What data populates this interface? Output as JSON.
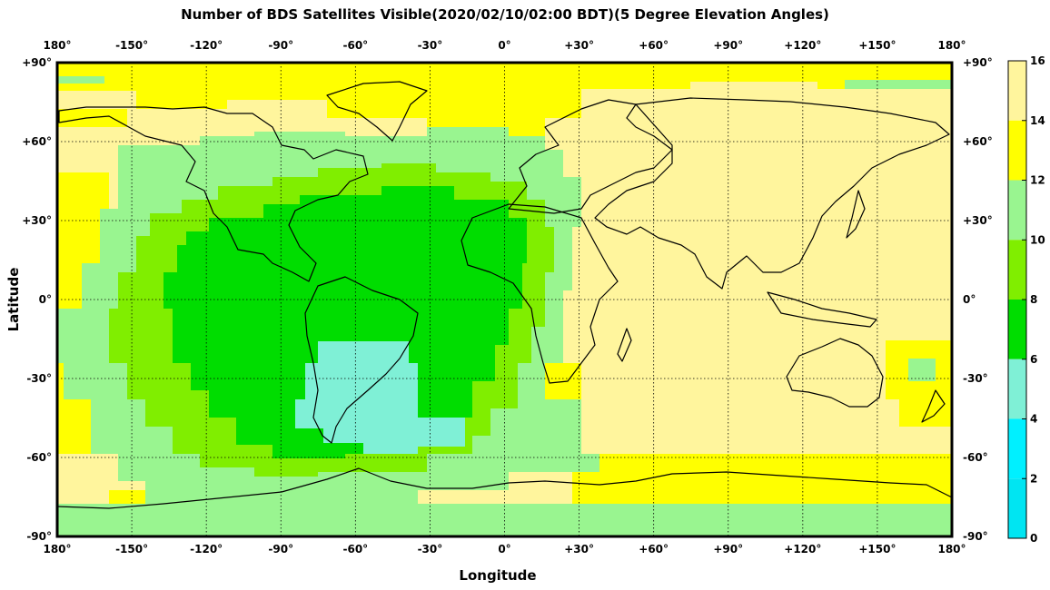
{
  "chart_data": {
    "type": "heatmap",
    "title": "Number of BDS Satellites Visible(2020/02/10/02:00 BDT)(5 Degree Elevation Angles)",
    "xlabel": "Longitude",
    "ylabel": "Latitude",
    "x_ticks_top": [
      "180°",
      "-150°",
      "-120°",
      "-90°",
      "-60°",
      "-30°",
      "0°",
      "+30°",
      "+60°",
      "+90°",
      "+120°",
      "+150°",
      "180°"
    ],
    "x_ticks_bottom": [
      "180°",
      "-150°",
      "-120°",
      "-90°",
      "-60°",
      "-30°",
      "0°",
      "+30°",
      "+60°",
      "+90°",
      "+120°",
      "+150°",
      "180°"
    ],
    "y_ticks": [
      "+90°",
      "+60°",
      "+30°",
      "0°",
      "-30°",
      "-60°",
      "-90°"
    ],
    "xlim": [
      -180,
      180
    ],
    "ylim": [
      -90,
      90
    ],
    "grid": true,
    "colorbar": {
      "ticks": [
        "16",
        "14",
        "12",
        "10",
        "8",
        "6",
        "4",
        "2",
        "0"
      ],
      "levels": [
        {
          "min": 14,
          "max": 16,
          "color": "#fff59d"
        },
        {
          "min": 12,
          "max": 14,
          "color": "#ffff00"
        },
        {
          "min": 10,
          "max": 12,
          "color": "#99f590"
        },
        {
          "min": 8,
          "max": 10,
          "color": "#80ee00"
        },
        {
          "min": 6,
          "max": 8,
          "color": "#00dd00"
        },
        {
          "min": 4,
          "max": 6,
          "color": "#7ff0d6"
        },
        {
          "min": 2,
          "max": 4,
          "color": "#00f0ff"
        },
        {
          "min": 0,
          "max": 2,
          "color": "#00e5f2"
        }
      ]
    },
    "regions_approx": [
      {
        "label": "Asia, Indian Ocean, Australia, W Pacific",
        "lon": [
          35,
          180
        ],
        "lat": [
          -65,
          75
        ],
        "value": 15
      },
      {
        "label": "Arctic band",
        "lon": [
          -180,
          180
        ],
        "lat": [
          68,
          90
        ],
        "value": 13
      },
      {
        "label": "Antarctic coast band",
        "lon": [
          -180,
          180
        ],
        "lat": [
          -75,
          -60
        ],
        "value": 13
      },
      {
        "label": "Atlantic / Pacific outer ring",
        "lon": [
          -170,
          30
        ],
        "lat": [
          -75,
          60
        ],
        "value": 11
      },
      {
        "label": "Atlantic / Americas inner ring",
        "lon": [
          -145,
          15
        ],
        "lat": [
          -70,
          50
        ],
        "value": 9
      },
      {
        "label": "South Atlantic core",
        "lon": [
          -120,
          -15
        ],
        "lat": [
          -60,
          40
        ],
        "value": 7
      },
      {
        "label": "Southern South America minimum",
        "lon": [
          -80,
          -27
        ],
        "lat": [
          -57,
          -16
        ],
        "value": 5
      }
    ]
  }
}
